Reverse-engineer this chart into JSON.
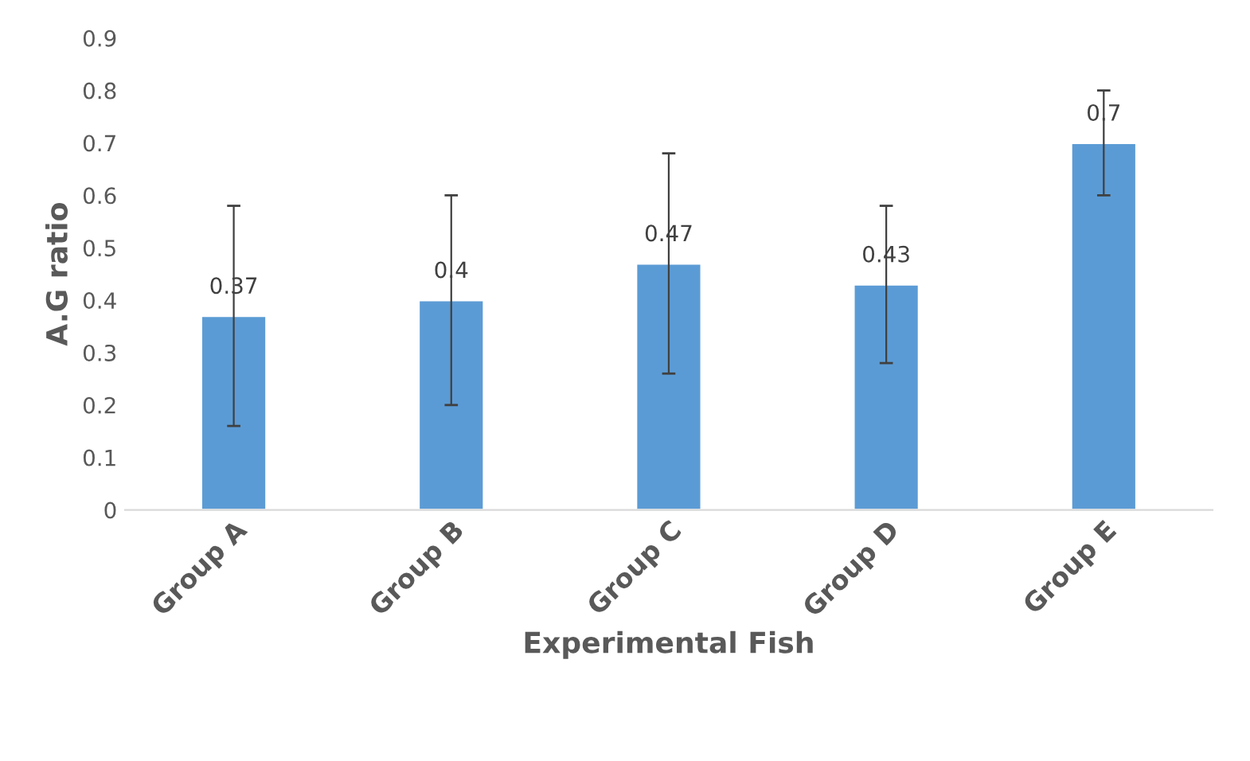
{
  "chart_data": {
    "type": "bar",
    "xlabel": "Experimental Fish",
    "ylabel": "A.G ratio",
    "categories": [
      "Group A",
      "Group B",
      "Group C",
      "Group D",
      "Group E"
    ],
    "values": [
      0.37,
      0.4,
      0.47,
      0.43,
      0.7
    ],
    "errors": [
      0.21,
      0.2,
      0.21,
      0.15,
      0.1
    ],
    "color": "#5b9bd5",
    "ylim": [
      0,
      0.9
    ],
    "yticks": [
      0,
      0.1,
      0.2,
      0.3,
      0.4,
      0.5,
      0.6,
      0.7,
      0.8,
      0.9
    ],
    "data_labels": true,
    "grid": false,
    "legend": false
  }
}
